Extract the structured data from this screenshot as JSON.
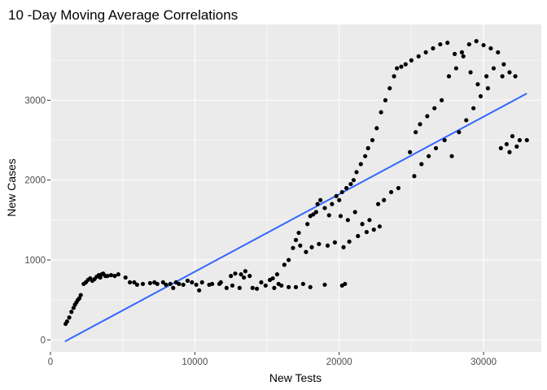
{
  "chart_data": {
    "type": "scatter",
    "title": "10 -Day Moving Average Correlations",
    "xlabel": "New Tests",
    "ylabel": "New Cases",
    "xlim": [
      0,
      34000
    ],
    "ylim": [
      -150,
      3950
    ],
    "x_ticks": [
      0,
      10000,
      20000,
      30000
    ],
    "y_ticks": [
      0,
      1000,
      2000,
      3000
    ],
    "x_tick_labels": [
      "0",
      "10000",
      "20000",
      "30000"
    ],
    "y_tick_labels": [
      "0",
      "1000",
      "2000",
      "3000"
    ],
    "grid": true,
    "panel_background": "#EBEBEB",
    "point_color": "#000000",
    "trend_color": "#3366FF",
    "trend_line": {
      "x": [
        1000,
        33000
      ],
      "y": [
        -20,
        3085
      ]
    },
    "series": [
      {
        "points": [
          [
            1050,
            200
          ],
          [
            1150,
            230
          ],
          [
            1300,
            280
          ],
          [
            1450,
            350
          ],
          [
            1600,
            400
          ],
          [
            1700,
            440
          ],
          [
            1800,
            470
          ],
          [
            1900,
            500
          ],
          [
            2000,
            520
          ],
          [
            2100,
            560
          ],
          [
            2300,
            700
          ],
          [
            2450,
            720
          ],
          [
            2600,
            750
          ],
          [
            2750,
            770
          ],
          [
            2900,
            740
          ],
          [
            3050,
            760
          ],
          [
            3200,
            790
          ],
          [
            3350,
            810
          ],
          [
            3450,
            780
          ],
          [
            3550,
            820
          ],
          [
            3650,
            830
          ],
          [
            3800,
            800
          ],
          [
            3950,
            800
          ],
          [
            4200,
            810
          ],
          [
            4450,
            800
          ],
          [
            4700,
            820
          ],
          [
            5200,
            780
          ],
          [
            5500,
            720
          ],
          [
            5800,
            720
          ],
          [
            6000,
            690
          ],
          [
            6400,
            700
          ],
          [
            6900,
            710
          ],
          [
            7200,
            720
          ],
          [
            7400,
            700
          ],
          [
            7800,
            720
          ],
          [
            8000,
            690
          ],
          [
            8300,
            700
          ],
          [
            8500,
            650
          ],
          [
            8700,
            720
          ],
          [
            8900,
            700
          ],
          [
            9200,
            690
          ],
          [
            9500,
            740
          ],
          [
            9800,
            720
          ],
          [
            10100,
            690
          ],
          [
            10300,
            620
          ],
          [
            10500,
            720
          ],
          [
            11000,
            690
          ],
          [
            11200,
            700
          ],
          [
            11800,
            720
          ],
          [
            12200,
            650
          ],
          [
            12500,
            800
          ],
          [
            12800,
            830
          ],
          [
            13200,
            820
          ],
          [
            13400,
            780
          ],
          [
            13500,
            860
          ],
          [
            13800,
            800
          ],
          [
            14000,
            650
          ],
          [
            14300,
            640
          ],
          [
            14600,
            720
          ],
          [
            14900,
            680
          ],
          [
            15200,
            750
          ],
          [
            15400,
            770
          ],
          [
            15700,
            820
          ],
          [
            15800,
            700
          ],
          [
            16000,
            680
          ],
          [
            16200,
            940
          ],
          [
            16500,
            1000
          ],
          [
            16800,
            1150
          ],
          [
            17000,
            1250
          ],
          [
            17200,
            1340
          ],
          [
            17500,
            700
          ],
          [
            17800,
            1450
          ],
          [
            18000,
            1550
          ],
          [
            18200,
            1570
          ],
          [
            18400,
            1600
          ],
          [
            18500,
            1700
          ],
          [
            18700,
            1750
          ],
          [
            19000,
            1650
          ],
          [
            19300,
            1560
          ],
          [
            19500,
            1700
          ],
          [
            19800,
            1800
          ],
          [
            20000,
            1750
          ],
          [
            20200,
            1850
          ],
          [
            20500,
            1900
          ],
          [
            20800,
            1950
          ],
          [
            21000,
            2000
          ],
          [
            21200,
            2100
          ],
          [
            21500,
            2200
          ],
          [
            21800,
            2300
          ],
          [
            22000,
            2400
          ],
          [
            22300,
            2500
          ],
          [
            22600,
            2650
          ],
          [
            22900,
            2850
          ],
          [
            23200,
            3000
          ],
          [
            23500,
            3150
          ],
          [
            23800,
            3300
          ],
          [
            24000,
            3400
          ],
          [
            24300,
            3420
          ],
          [
            24600,
            3450
          ],
          [
            25000,
            3500
          ],
          [
            25500,
            3550
          ],
          [
            26000,
            3600
          ],
          [
            26500,
            3650
          ],
          [
            27000,
            3700
          ],
          [
            27500,
            3720
          ],
          [
            28000,
            3580
          ],
          [
            28500,
            3600
          ],
          [
            29000,
            3700
          ],
          [
            29500,
            3740
          ],
          [
            30000,
            3690
          ],
          [
            30500,
            3650
          ],
          [
            31000,
            3600
          ],
          [
            31400,
            3450
          ],
          [
            31800,
            3350
          ],
          [
            32200,
            3300
          ],
          [
            17300,
            1180
          ],
          [
            17700,
            1100
          ],
          [
            18100,
            1160
          ],
          [
            18600,
            1200
          ],
          [
            19200,
            1180
          ],
          [
            19700,
            1220
          ],
          [
            20300,
            1160
          ],
          [
            20700,
            1230
          ],
          [
            21300,
            1300
          ],
          [
            21900,
            1350
          ],
          [
            22400,
            1380
          ],
          [
            22800,
            1420
          ],
          [
            20100,
            1550
          ],
          [
            20600,
            1500
          ],
          [
            21100,
            1600
          ],
          [
            21600,
            1450
          ],
          [
            22100,
            1500
          ],
          [
            22700,
            1700
          ],
          [
            23100,
            1750
          ],
          [
            23600,
            1850
          ],
          [
            24100,
            1900
          ],
          [
            25200,
            2050
          ],
          [
            25700,
            2200
          ],
          [
            26200,
            2300
          ],
          [
            26700,
            2400
          ],
          [
            27300,
            2500
          ],
          [
            27800,
            2300
          ],
          [
            28300,
            2600
          ],
          [
            28800,
            2750
          ],
          [
            29300,
            2900
          ],
          [
            29800,
            3050
          ],
          [
            30300,
            3150
          ],
          [
            31200,
            2400
          ],
          [
            31600,
            2450
          ],
          [
            32000,
            2550
          ],
          [
            32500,
            2500
          ],
          [
            33000,
            2500
          ],
          [
            31800,
            2350
          ],
          [
            32300,
            2420
          ],
          [
            24900,
            2350
          ],
          [
            25300,
            2600
          ],
          [
            25600,
            2700
          ],
          [
            26100,
            2800
          ],
          [
            26600,
            2900
          ],
          [
            27100,
            3000
          ],
          [
            27600,
            3300
          ],
          [
            28100,
            3400
          ],
          [
            28600,
            3550
          ],
          [
            29100,
            3350
          ],
          [
            29600,
            3200
          ],
          [
            30200,
            3300
          ],
          [
            30700,
            3400
          ],
          [
            31300,
            3300
          ],
          [
            20400,
            700
          ],
          [
            20200,
            680
          ],
          [
            19000,
            690
          ],
          [
            18000,
            660
          ],
          [
            17000,
            660
          ],
          [
            16500,
            660
          ],
          [
            15500,
            650
          ],
          [
            13100,
            650
          ],
          [
            12600,
            680
          ],
          [
            11700,
            700
          ]
        ]
      }
    ]
  }
}
